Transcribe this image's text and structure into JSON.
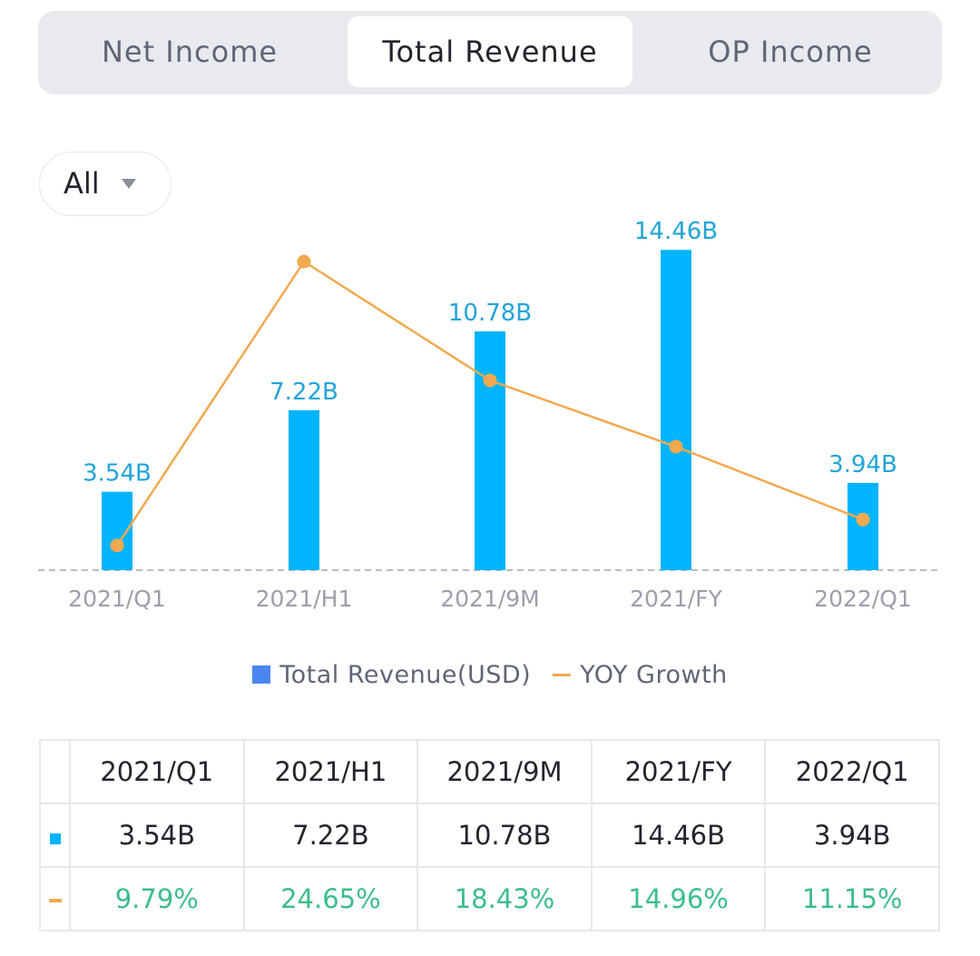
{
  "tabs": [
    {
      "label": "Net Income",
      "selected": false
    },
    {
      "label": "Total Revenue",
      "selected": true
    },
    {
      "label": "OP Income",
      "selected": false
    }
  ],
  "filter": {
    "selected": "All"
  },
  "colors": {
    "bar": "#00b4ff",
    "line": "#f2a950",
    "legend_bar": "#4a86f0",
    "value_label": "#22a4d8",
    "axis_label": "#9b9fa8",
    "growth_text": "#3dbd8c"
  },
  "chart_data": {
    "type": "bar",
    "categories": [
      "2021/Q1",
      "2021/H1",
      "2021/9M",
      "2021/FY",
      "2022/Q1"
    ],
    "series": [
      {
        "name": "Total Revenue(USD)",
        "type": "bar",
        "values": [
          3.54,
          7.22,
          10.78,
          14.46,
          3.94
        ],
        "labels": [
          "3.54B",
          "7.22B",
          "10.78B",
          "14.46B",
          "3.94B"
        ]
      },
      {
        "name": "YOY Growth",
        "type": "line",
        "values": [
          9.79,
          24.65,
          18.43,
          14.96,
          11.15
        ],
        "labels": [
          "9.79%",
          "24.65%",
          "18.43%",
          "14.96%",
          "11.15%"
        ]
      }
    ],
    "xlabel": "",
    "ylabel": "",
    "ylim": [
      0,
      15.7
    ],
    "y2lim": [
      8.5,
      26.7
    ],
    "legend_position": "bottom"
  }
}
